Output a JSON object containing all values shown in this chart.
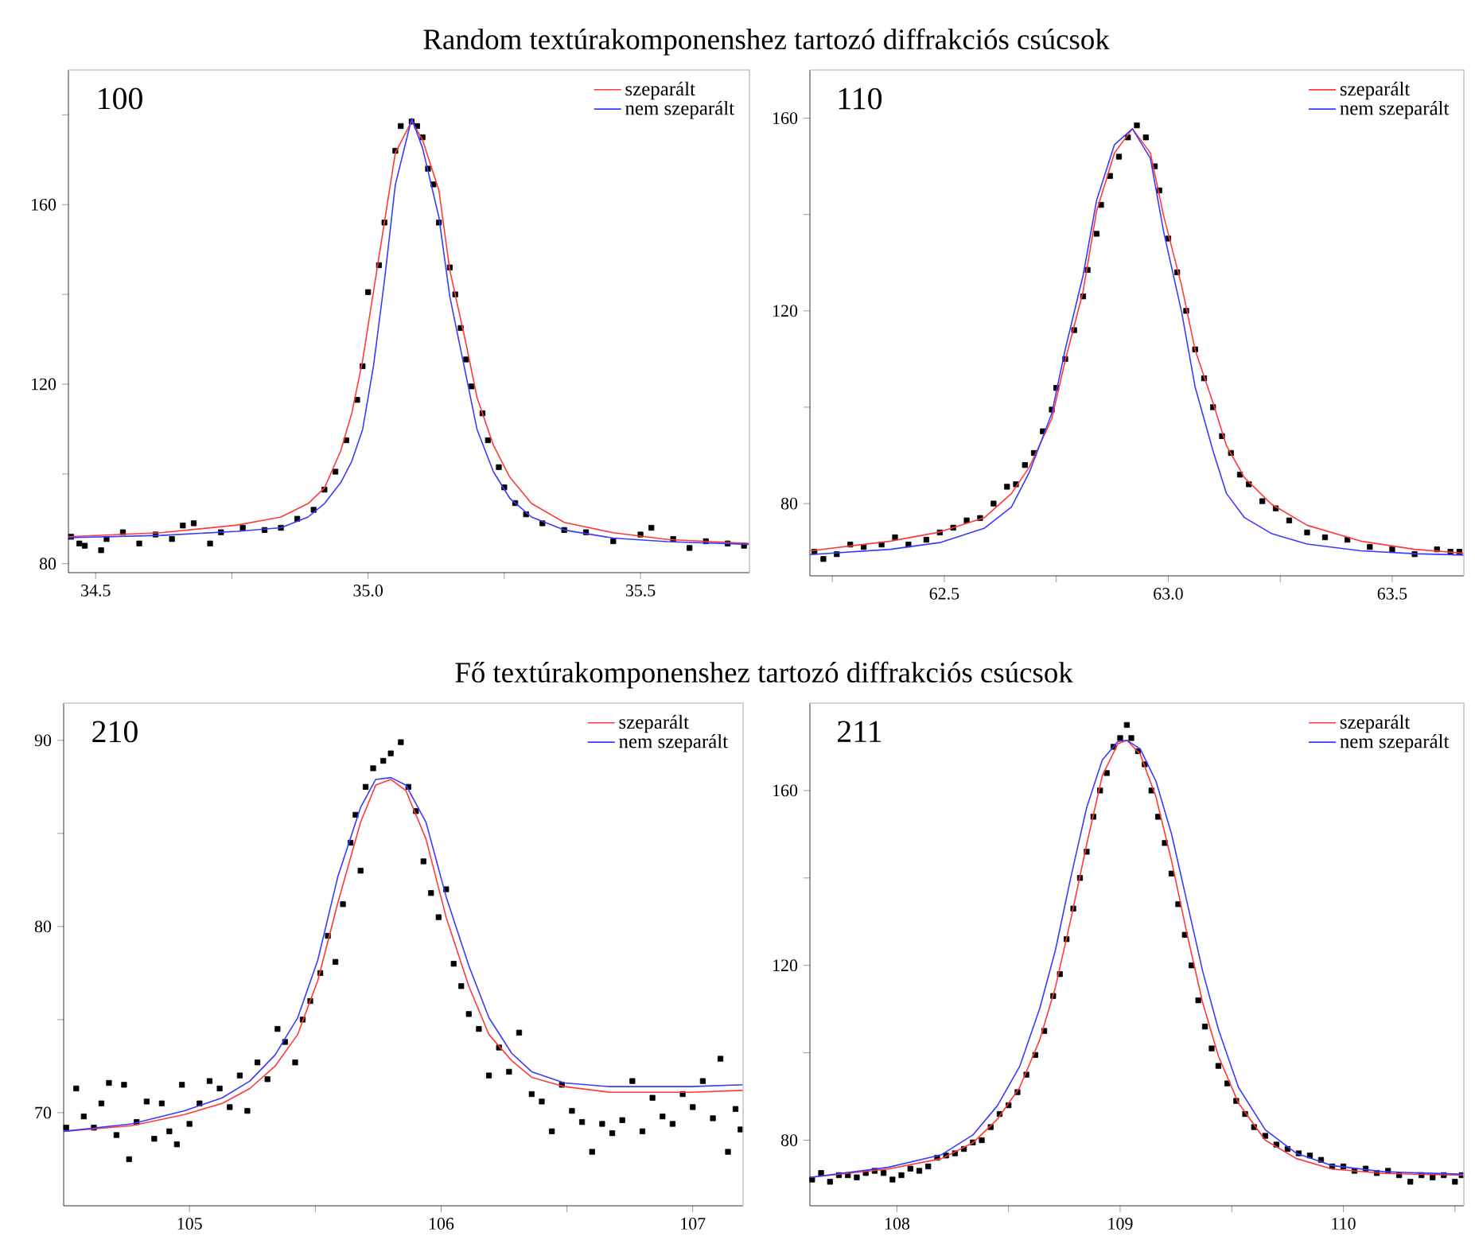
{
  "chart_data": [
    {
      "type": "scatter",
      "marker": "square",
      "title": "Random textúrakomponenshez tartozó diffrakciós csúcsok",
      "annotations": [
        "100"
      ],
      "legend": "top right",
      "xlim": [
        34.45,
        35.7
      ],
      "ylim": [
        78,
        190
      ],
      "xticks": [
        34.5,
        {
          "value": 34.75,
          "label": null
        },
        {
          "value": 35,
          "label": "35.0"
        },
        {
          "value": 35.25,
          "label": null
        },
        35.5
      ],
      "yticks": [
        80,
        {
          "value": 100,
          "label": null
        },
        120,
        {
          "value": 140,
          "label": null
        },
        160,
        {
          "value": 180,
          "label": null
        }
      ],
      "series": [
        {
          "color": "#000000",
          "x": [
            34.455,
            34.47,
            34.48,
            34.51,
            34.52,
            34.55,
            34.58,
            34.61,
            34.64,
            34.66,
            34.68,
            34.71,
            34.73,
            34.77,
            34.81,
            34.84,
            34.87,
            34.9,
            34.92,
            34.94,
            34.96,
            34.98,
            34.99,
            35.0,
            35.02,
            35.03,
            35.05,
            35.06,
            35.08,
            35.09,
            35.1,
            35.11,
            35.12,
            35.13,
            35.15,
            35.16,
            35.17,
            35.18,
            35.19,
            35.21,
            35.22,
            35.24,
            35.25,
            35.27,
            35.29,
            35.32,
            35.36,
            35.4,
            35.45,
            35.5,
            35.52,
            35.56,
            35.59,
            35.62,
            35.66,
            35.69
          ],
          "values": [
            86,
            84.5,
            84,
            83,
            85.5,
            87,
            84.5,
            86.5,
            85.5,
            88.5,
            89,
            84.5,
            87,
            88,
            87.5,
            88,
            90,
            92,
            96.5,
            100.5,
            107.5,
            116.5,
            124,
            140.5,
            146.5,
            156,
            172,
            177.5,
            178.5,
            177.5,
            175,
            168,
            164.5,
            156,
            146,
            140,
            132.5,
            125.5,
            119.5,
            113.5,
            107.5,
            101.5,
            97,
            93.5,
            91,
            89,
            87.5,
            87,
            85,
            86.5,
            88,
            85.5,
            83.5,
            85,
            84.5,
            84
          ]
        },
        {
          "type": "line",
          "marker": "none",
          "name": "szeparált",
          "color": "#ff3a3a",
          "x": [
            34.45,
            34.62,
            34.76,
            34.84,
            34.89,
            34.92,
            34.95,
            34.97,
            34.99,
            35.01,
            35.03,
            35.05,
            35.08,
            35.1,
            35.13,
            35.15,
            35.18,
            35.2,
            35.23,
            35.26,
            35.3,
            35.36,
            35.45,
            35.55,
            35.7
          ],
          "values": [
            86,
            86.9,
            88.6,
            90.4,
            93.4,
            96.9,
            105.2,
            113.5,
            125.3,
            140.7,
            156.1,
            171.5,
            178.6,
            174.4,
            163.2,
            145.4,
            128.9,
            117,
            106.4,
            99.3,
            93.4,
            89.2,
            86.9,
            85.4,
            84.5
          ]
        },
        {
          "type": "line",
          "marker": "none",
          "name": "nem szeparált",
          "color": "#3a3aff",
          "x": [
            34.45,
            34.62,
            34.76,
            34.84,
            34.89,
            34.92,
            34.95,
            34.97,
            34.99,
            35.01,
            35.03,
            35.05,
            35.08,
            35.1,
            35.13,
            35.15,
            35.18,
            35.2,
            35.23,
            35.26,
            35.3,
            35.36,
            35.45,
            35.55,
            35.7
          ],
          "values": [
            85.8,
            86.3,
            87.2,
            88,
            90.4,
            93.4,
            98.1,
            102.8,
            109.9,
            124.1,
            143,
            164.4,
            179.2,
            172.6,
            157.2,
            139.5,
            121.8,
            109.9,
            100.5,
            94.6,
            90.4,
            87.5,
            85.7,
            84.9,
            84.3
          ]
        }
      ]
    },
    {
      "type": "scatter",
      "marker": "square",
      "annotations": [
        "110"
      ],
      "legend": "top right",
      "xlim": [
        62.2,
        63.66
      ],
      "ylim": [
        65,
        170
      ],
      "xticks": [
        {
          "value": 62.25,
          "label": null
        },
        62.5,
        {
          "value": 62.75,
          "label": null
        },
        {
          "value": 63,
          "label": "63.0"
        },
        {
          "value": 63.25,
          "label": null
        },
        63.5
      ],
      "yticks": [
        80,
        {
          "value": 100,
          "label": null
        },
        120,
        {
          "value": 140,
          "label": null
        },
        160
      ],
      "series": [
        {
          "color": "#000000",
          "x": [
            62.21,
            62.23,
            62.26,
            62.29,
            62.32,
            62.36,
            62.39,
            62.42,
            62.46,
            62.49,
            62.52,
            62.55,
            62.58,
            62.61,
            62.64,
            62.66,
            62.68,
            62.7,
            62.72,
            62.74,
            62.75,
            62.77,
            62.79,
            62.81,
            62.82,
            62.84,
            62.85,
            62.87,
            62.89,
            62.91,
            62.93,
            62.95,
            62.97,
            62.98,
            63.0,
            63.02,
            63.04,
            63.06,
            63.08,
            63.1,
            63.12,
            63.14,
            63.16,
            63.18,
            63.21,
            63.24,
            63.27,
            63.31,
            63.35,
            63.4,
            63.45,
            63.5,
            63.55,
            63.6,
            63.63,
            63.65
          ],
          "values": [
            70,
            68.5,
            69.5,
            71.5,
            71,
            71.5,
            73,
            71.5,
            72.5,
            74,
            75,
            76.5,
            77,
            80,
            83.5,
            84,
            88,
            90.5,
            95,
            99.5,
            104,
            110,
            116,
            123,
            128.5,
            136,
            142,
            148,
            152,
            156,
            158.5,
            156,
            150,
            145,
            135,
            128,
            120,
            112,
            106,
            100,
            94,
            90.5,
            86,
            84,
            80.5,
            79,
            76.5,
            74,
            73,
            72.5,
            71,
            70.5,
            69.5,
            70.5,
            70,
            70
          ]
        },
        {
          "type": "line",
          "marker": "none",
          "name": "szeparált",
          "color": "#ff3a3a",
          "x": [
            62.2,
            62.38,
            62.49,
            62.59,
            62.65,
            62.69,
            62.74,
            62.77,
            62.81,
            62.84,
            62.88,
            62.92,
            62.96,
            62.99,
            63.03,
            63.06,
            63.1,
            63.13,
            63.17,
            63.23,
            63.31,
            63.43,
            63.55,
            63.66
          ],
          "values": [
            70.2,
            72.2,
            74.1,
            77.1,
            82.1,
            87.6,
            97.6,
            109.7,
            124.1,
            140.7,
            152.8,
            157.8,
            152.8,
            139.6,
            125.2,
            111.9,
            100.9,
            92,
            85.4,
            79.9,
            75.5,
            72.2,
            70.5,
            69.7
          ]
        },
        {
          "type": "line",
          "marker": "none",
          "name": "nem szeparált",
          "color": "#3a3aff",
          "x": [
            62.2,
            62.38,
            62.49,
            62.59,
            62.65,
            62.69,
            62.74,
            62.77,
            62.81,
            62.84,
            62.88,
            62.92,
            62.96,
            62.99,
            63.03,
            63.06,
            63.1,
            63.13,
            63.17,
            63.23,
            63.31,
            63.43,
            63.55,
            63.66
          ],
          "values": [
            69.4,
            70.5,
            71.9,
            74.9,
            79.3,
            86.5,
            98.7,
            112,
            127.4,
            142.9,
            154.5,
            157.8,
            151.7,
            136.3,
            119.7,
            104.2,
            90.9,
            82.1,
            77.1,
            73.8,
            71.6,
            70.2,
            69.6,
            69.3
          ]
        }
      ]
    },
    {
      "type": "scatter",
      "marker": "square",
      "title": "Fő textúrakomponenshez tartozó diffrakciós csúcsok",
      "annotations": [
        "210"
      ],
      "legend": "top right",
      "xlim": [
        104.5,
        107.2
      ],
      "ylim": [
        65,
        92
      ],
      "xticks": [
        105,
        {
          "value": 105.5,
          "label": null
        },
        106,
        {
          "value": 106.5,
          "label": null
        },
        107
      ],
      "yticks": [
        70,
        {
          "value": 75,
          "label": null
        },
        80,
        {
          "value": 85,
          "label": null
        },
        90
      ],
      "series": [
        {
          "color": "#000000",
          "x": [
            104.51,
            104.55,
            104.58,
            104.62,
            104.65,
            104.68,
            104.71,
            104.74,
            104.76,
            104.79,
            104.83,
            104.86,
            104.89,
            104.92,
            104.95,
            104.97,
            105.0,
            105.04,
            105.08,
            105.12,
            105.16,
            105.2,
            105.23,
            105.27,
            105.31,
            105.35,
            105.38,
            105.42,
            105.45,
            105.48,
            105.52,
            105.55,
            105.58,
            105.61,
            105.64,
            105.66,
            105.68,
            105.7,
            105.73,
            105.77,
            105.8,
            105.84,
            105.87,
            105.9,
            105.93,
            105.96,
            105.99,
            106.02,
            106.05,
            106.08,
            106.11,
            106.15,
            106.19,
            106.23,
            106.27,
            106.31,
            106.36,
            106.4,
            106.44,
            106.48,
            106.52,
            106.56,
            106.6,
            106.64,
            106.68,
            106.72,
            106.76,
            106.8,
            106.84,
            106.88,
            106.92,
            106.96,
            107.0,
            107.04,
            107.08,
            107.11,
            107.14,
            107.17,
            107.19
          ],
          "values": [
            69.2,
            71.3,
            69.8,
            69.2,
            70.5,
            71.6,
            68.8,
            71.5,
            67.5,
            69.5,
            70.6,
            68.6,
            70.5,
            69,
            68.3,
            71.5,
            69.4,
            70.5,
            71.7,
            71.3,
            70.3,
            72,
            70.1,
            72.7,
            71.8,
            74.5,
            73.8,
            72.7,
            75,
            76,
            77.5,
            79.5,
            78.1,
            81.2,
            84.5,
            86,
            83,
            87.5,
            88.5,
            88.9,
            89.3,
            89.9,
            87.5,
            86.2,
            83.5,
            81.8,
            80.5,
            82,
            78,
            76.8,
            75.3,
            74.5,
            72,
            73.5,
            72.2,
            74.3,
            71,
            70.6,
            69,
            71.5,
            70.1,
            69.5,
            67.9,
            69.4,
            68.9,
            69.6,
            71.7,
            69,
            70.8,
            69.8,
            69.4,
            71,
            70.3,
            71.7,
            69.7,
            72.9,
            67.9,
            70.2,
            69.1
          ]
        },
        {
          "type": "line",
          "marker": "none",
          "name": "szeparált",
          "color": "#ff3a3a",
          "x": [
            104.5,
            104.77,
            104.98,
            105.13,
            105.24,
            105.34,
            105.43,
            105.51,
            105.59,
            105.68,
            105.74,
            105.8,
            105.86,
            105.94,
            106.02,
            106.11,
            106.19,
            106.28,
            106.36,
            106.49,
            106.67,
            106.99,
            107.2
          ],
          "values": [
            69,
            69.3,
            69.9,
            70.5,
            71.3,
            72.5,
            74.2,
            77.1,
            81.3,
            85.6,
            87.6,
            87.9,
            87.3,
            84.7,
            80.5,
            76.8,
            74.2,
            72.8,
            71.9,
            71.4,
            71.1,
            71.1,
            71.2
          ]
        },
        {
          "type": "line",
          "marker": "none",
          "name": "nem szeparált",
          "color": "#3a3aff",
          "x": [
            104.5,
            104.77,
            104.98,
            105.13,
            105.24,
            105.34,
            105.43,
            105.51,
            105.59,
            105.68,
            105.74,
            105.8,
            105.86,
            105.94,
            106.02,
            106.11,
            106.19,
            106.28,
            106.36,
            106.49,
            106.67,
            106.99,
            107.2
          ],
          "values": [
            69,
            69.4,
            70.1,
            70.8,
            71.7,
            73.1,
            75.1,
            78.2,
            82.7,
            86.4,
            87.9,
            88,
            87.6,
            85.6,
            81.6,
            77.9,
            75.1,
            73.2,
            72.2,
            71.6,
            71.4,
            71.4,
            71.5
          ]
        }
      ]
    },
    {
      "type": "scatter",
      "marker": "square",
      "annotations": [
        "211"
      ],
      "legend": "top right",
      "xlim": [
        107.61,
        110.54
      ],
      "ylim": [
        65,
        180
      ],
      "xticks": [
        108,
        {
          "value": 108.5,
          "label": null
        },
        109,
        {
          "value": 109.5,
          "label": null
        },
        110,
        {
          "value": 110.5,
          "label": null
        }
      ],
      "yticks": [
        80,
        {
          "value": 100,
          "label": null
        },
        120,
        {
          "value": 140,
          "label": null
        },
        160
      ],
      "series": [
        {
          "color": "#000000",
          "x": [
            107.62,
            107.66,
            107.7,
            107.74,
            107.78,
            107.82,
            107.86,
            107.9,
            107.94,
            107.98,
            108.02,
            108.06,
            108.1,
            108.14,
            108.18,
            108.22,
            108.26,
            108.3,
            108.34,
            108.38,
            108.42,
            108.46,
            108.5,
            108.54,
            108.58,
            108.62,
            108.66,
            108.7,
            108.73,
            108.76,
            108.79,
            108.82,
            108.85,
            108.88,
            108.91,
            108.94,
            108.97,
            109.0,
            109.03,
            109.05,
            109.08,
            109.11,
            109.14,
            109.17,
            109.2,
            109.23,
            109.26,
            109.29,
            109.32,
            109.35,
            109.38,
            109.41,
            109.44,
            109.48,
            109.52,
            109.56,
            109.6,
            109.65,
            109.7,
            109.75,
            109.8,
            109.85,
            109.9,
            109.95,
            110.0,
            110.05,
            110.1,
            110.15,
            110.2,
            110.25,
            110.3,
            110.35,
            110.4,
            110.45,
            110.5,
            110.53
          ],
          "values": [
            71,
            72.5,
            70.5,
            72,
            72,
            71.5,
            72.5,
            73,
            72.5,
            71,
            72,
            73.5,
            73,
            74,
            76,
            76.5,
            77,
            78,
            79.5,
            80,
            83,
            86,
            88,
            91,
            95,
            99.5,
            105,
            113,
            118,
            126,
            133,
            140,
            146,
            154,
            160,
            164,
            170,
            172,
            175,
            172,
            169,
            166,
            160,
            154,
            148,
            141,
            134,
            127,
            120,
            112,
            106,
            101,
            97,
            93,
            89,
            86,
            83,
            81,
            79,
            78,
            77,
            76.5,
            75.5,
            74,
            74,
            73,
            73.5,
            72.5,
            73,
            72,
            70.5,
            72,
            71.5,
            72,
            70.5,
            72
          ]
        },
        {
          "type": "line",
          "marker": "none",
          "name": "szeparált",
          "color": "#ff3a3a",
          "x": [
            107.61,
            107.96,
            108.2,
            108.34,
            108.45,
            108.55,
            108.64,
            108.71,
            108.78,
            108.85,
            108.92,
            108.99,
            109.03,
            109.09,
            109.16,
            109.23,
            109.3,
            109.37,
            109.44,
            109.53,
            109.65,
            109.79,
            109.95,
            110.18,
            110.54
          ],
          "values": [
            71.5,
            73.4,
            75.8,
            79.4,
            84.8,
            92.1,
            103,
            115,
            130.8,
            147.7,
            163.4,
            170.7,
            171.5,
            168.3,
            158.6,
            144,
            127.1,
            111.4,
            99.3,
            88.5,
            80,
            75.8,
            73.4,
            72.4,
            72
          ]
        },
        {
          "type": "line",
          "marker": "none",
          "name": "nem szeparált",
          "color": "#3a3aff",
          "x": [
            107.61,
            107.96,
            108.2,
            108.34,
            108.45,
            108.55,
            108.64,
            108.71,
            108.78,
            108.85,
            108.92,
            108.99,
            109.03,
            109.09,
            109.16,
            109.23,
            109.3,
            109.37,
            109.44,
            109.53,
            109.65,
            109.79,
            109.95,
            110.18,
            110.54
          ],
          "values": [
            71.5,
            73.8,
            76.7,
            81.2,
            87.9,
            96.9,
            110.2,
            123.5,
            140.4,
            156.1,
            167,
            171.2,
            171.5,
            169.5,
            162.2,
            150.1,
            134.4,
            118.6,
            105.4,
            92.1,
            82.4,
            77,
            74.2,
            72.8,
            72.2
          ]
        }
      ]
    }
  ]
}
